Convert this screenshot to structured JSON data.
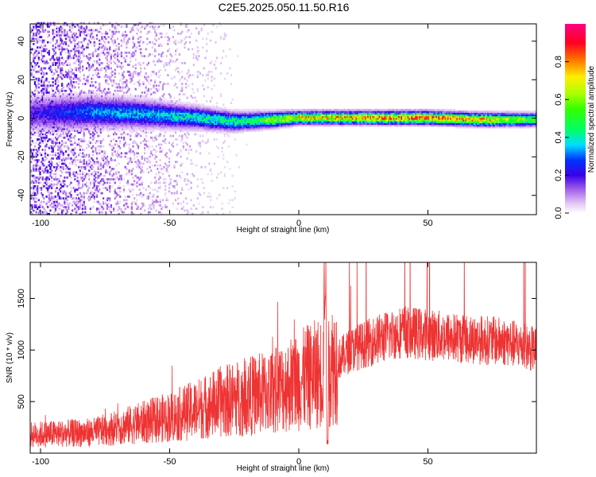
{
  "title": "C2E5.2025.050.11.50.R16",
  "chart_data": [
    {
      "type": "heatmap",
      "xlabel": "Height of straight line (km)",
      "ylabel": "Frequency (Hz)",
      "xlim": [
        -104,
        92
      ],
      "ylim": [
        -50,
        49
      ],
      "x_ticks": [
        -100,
        -50,
        0,
        50
      ],
      "y_ticks": [
        -40,
        -20,
        0,
        20,
        40
      ],
      "colorbar": {
        "label": "Normalized spectral amplitude",
        "range": [
          0.0,
          1.0
        ],
        "ticks": [
          0.0,
          0.2,
          0.4,
          0.6,
          0.8
        ],
        "tick_labels": [
          "0.0",
          "0.2",
          "0.4",
          "0.6",
          "0.8"
        ]
      },
      "ridge_center": [
        {
          "x": -104,
          "y": 2
        },
        {
          "x": -80,
          "y": 3
        },
        {
          "x": -60,
          "y": 2
        },
        {
          "x": -40,
          "y": 0
        },
        {
          "x": -25,
          "y": -2
        },
        {
          "x": -10,
          "y": -1
        },
        {
          "x": 0,
          "y": 0
        },
        {
          "x": 20,
          "y": 0
        },
        {
          "x": 50,
          "y": 0
        },
        {
          "x": 70,
          "y": -1
        },
        {
          "x": 92,
          "y": -1
        }
      ],
      "ridge_amplitude": [
        {
          "x": -104,
          "v": 0.2
        },
        {
          "x": -80,
          "v": 0.35
        },
        {
          "x": -60,
          "v": 0.4
        },
        {
          "x": -40,
          "v": 0.45
        },
        {
          "x": -20,
          "v": 0.5
        },
        {
          "x": 0,
          "v": 0.8
        },
        {
          "x": 20,
          "v": 0.85
        },
        {
          "x": 50,
          "v": 0.95
        },
        {
          "x": 70,
          "v": 0.85
        },
        {
          "x": 92,
          "v": 0.6
        }
      ]
    },
    {
      "type": "line",
      "xlabel": "Height of straight line (km)",
      "ylabel": "SNR (10 * v/v)",
      "xlim": [
        -104,
        92
      ],
      "ylim": [
        0,
        1850
      ],
      "x_ticks": [
        -100,
        -50,
        0,
        50
      ],
      "y_ticks": [
        500,
        1000,
        1500
      ],
      "series": [
        {
          "color": "#ee3333",
          "envelope": [
            {
              "x": -104,
              "y": 180
            },
            {
              "x": -80,
              "y": 200
            },
            {
              "x": -70,
              "y": 250
            },
            {
              "x": -60,
              "y": 300
            },
            {
              "x": -50,
              "y": 350
            },
            {
              "x": -40,
              "y": 420
            },
            {
              "x": -30,
              "y": 500
            },
            {
              "x": -20,
              "y": 550
            },
            {
              "x": -10,
              "y": 600
            },
            {
              "x": 0,
              "y": 700
            },
            {
              "x": 5,
              "y": 750
            },
            {
              "x": 10,
              "y": 800
            },
            {
              "x": 15,
              "y": 900
            },
            {
              "x": 20,
              "y": 1000
            },
            {
              "x": 30,
              "y": 1100
            },
            {
              "x": 40,
              "y": 1180
            },
            {
              "x": 50,
              "y": 1150
            },
            {
              "x": 60,
              "y": 1120
            },
            {
              "x": 70,
              "y": 1100
            },
            {
              "x": 80,
              "y": 1080
            },
            {
              "x": 92,
              "y": 1000
            }
          ]
        }
      ]
    }
  ]
}
